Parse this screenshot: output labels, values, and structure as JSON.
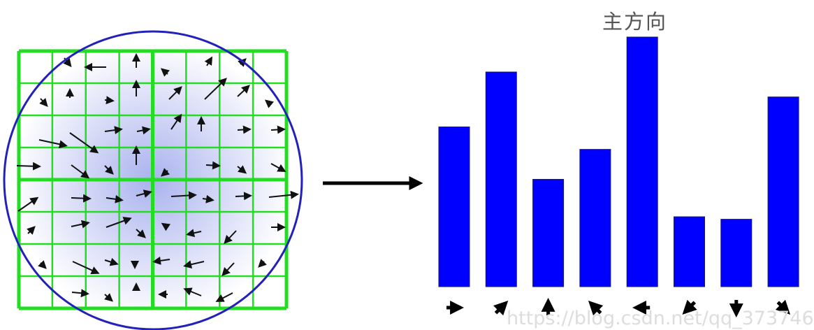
{
  "title": "主方向",
  "watermark": "https://blog.csdn.net/qq_373746",
  "colors": {
    "grid": "#22dd22",
    "circle": "#2222bb",
    "bars": "#0000ff",
    "arrows": "#111111",
    "center_glow": "#aab2ee"
  },
  "histogram": {
    "bins": [
      {
        "direction": "right",
        "angle_deg": 0,
        "relative_height": 0.64
      },
      {
        "direction": "up-right",
        "angle_deg": 45,
        "relative_height": 0.86
      },
      {
        "direction": "up",
        "angle_deg": 90,
        "relative_height": 0.43
      },
      {
        "direction": "up-left",
        "angle_deg": 135,
        "relative_height": 0.55
      },
      {
        "direction": "left",
        "angle_deg": 180,
        "relative_height": 1.0
      },
      {
        "direction": "down-left",
        "angle_deg": 225,
        "relative_height": 0.28
      },
      {
        "direction": "down",
        "angle_deg": 270,
        "relative_height": 0.27
      },
      {
        "direction": "down-right",
        "angle_deg": 315,
        "relative_height": 0.76
      }
    ],
    "dominant_bin": 4
  }
}
